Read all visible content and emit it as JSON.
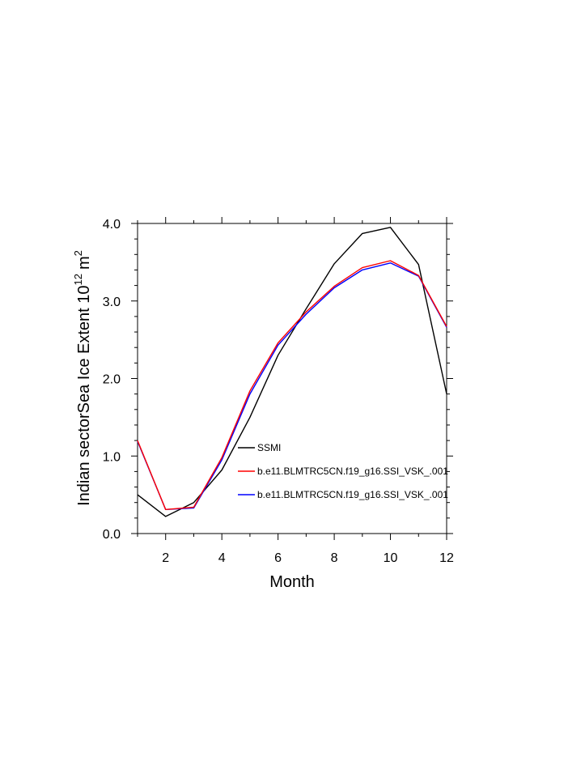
{
  "chart_data": {
    "type": "line",
    "xlabel": "Month",
    "ylabel_main": "Indian sectorSea Ice Extent 10",
    "ylabel_exp": "12",
    "ylabel_unit": "m",
    "ylabel_unit_exp": "2",
    "xlim": [
      1,
      12
    ],
    "ylim": [
      0.0,
      4.0
    ],
    "x_ticks": [
      2,
      4,
      6,
      8,
      10,
      12
    ],
    "x_tick_labels": [
      "2",
      "4",
      "6",
      "8",
      "10",
      "12"
    ],
    "y_ticks": [
      0,
      1,
      2,
      3,
      4
    ],
    "y_tick_labels": [
      "0.0",
      "1.0",
      "2.0",
      "3.0",
      "4.0"
    ],
    "x": [
      1,
      2,
      3,
      4,
      5,
      6,
      7,
      8,
      9,
      10,
      11,
      12
    ],
    "series": [
      {
        "name": "SSMI",
        "color": "#000000",
        "values": [
          0.5,
          0.22,
          0.4,
          0.82,
          1.5,
          2.3,
          2.9,
          3.48,
          3.87,
          3.95,
          3.47,
          1.8
        ]
      },
      {
        "name": "b.e11.BLMTRC5CN.f19_g16.SSI_VSK_.001",
        "color": "#ff0000",
        "values": [
          1.2,
          0.31,
          0.34,
          0.98,
          1.84,
          2.46,
          2.86,
          3.19,
          3.43,
          3.52,
          3.33,
          2.67
        ]
      },
      {
        "name": "b.e11.BLMTRC5CN.f19_g16.SSI_VSK_.001",
        "color": "#0000ff",
        "values": [
          1.19,
          0.31,
          0.33,
          0.95,
          1.8,
          2.43,
          2.83,
          3.17,
          3.4,
          3.49,
          3.32,
          2.66
        ]
      }
    ],
    "legend_position": "lower-right-inside",
    "grid": false
  }
}
